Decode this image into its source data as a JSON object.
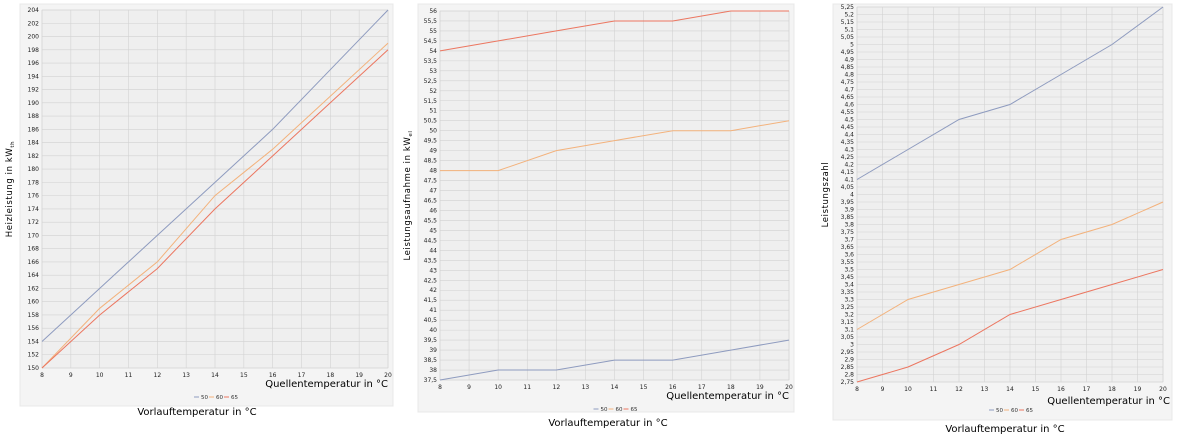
{
  "chart_data": [
    {
      "type": "line",
      "ylabel": "Heizleistung in kW",
      "ylabel_sub": "th",
      "xlabel": "Quellentemperatur in °C",
      "legend_title": "Vorlauftemperatur in °C",
      "legend_placement": "bottom",
      "grid": true,
      "xlim": [
        8,
        20
      ],
      "ylim": [
        150,
        204
      ],
      "x_ticks": [
        8,
        9,
        10,
        11,
        12,
        13,
        14,
        15,
        16,
        17,
        18,
        19,
        20
      ],
      "y_ticks": [
        150,
        152,
        154,
        156,
        158,
        160,
        162,
        164,
        166,
        168,
        170,
        172,
        174,
        176,
        178,
        180,
        182,
        184,
        186,
        188,
        190,
        192,
        194,
        196,
        198,
        200,
        202,
        204
      ],
      "y_tick_labels": [
        "150",
        "152",
        "154",
        "156",
        "158",
        "160",
        "162",
        "164",
        "166",
        "168",
        "170",
        "172",
        "174",
        "176",
        "178",
        "180",
        "182",
        "184",
        "186",
        "188",
        "190",
        "192",
        "194",
        "196",
        "198",
        "200",
        "202",
        "204"
      ],
      "series": [
        {
          "name": "50",
          "color": "#8e9bbf",
          "x": [
            8,
            10,
            12,
            14,
            16,
            18,
            20
          ],
          "y": [
            154,
            162,
            170,
            178,
            186,
            195,
            204
          ]
        },
        {
          "name": "60",
          "color": "#f3b27c",
          "x": [
            8,
            10,
            12,
            14,
            16,
            18,
            20
          ],
          "y": [
            150,
            159,
            166,
            176,
            183,
            191,
            199
          ]
        },
        {
          "name": "65",
          "color": "#ec7660",
          "x": [
            8,
            10,
            12,
            14,
            16,
            18,
            20
          ],
          "y": [
            150,
            158,
            165,
            174,
            182,
            190,
            198
          ]
        }
      ]
    },
    {
      "type": "line",
      "ylabel": "Leistungsaufnahme in kW",
      "ylabel_sub": "el",
      "xlabel": "Quellentemperatur in °C",
      "legend_title": "Vorlauftemperatur in °C",
      "legend_placement": "bottom",
      "grid": true,
      "xlim": [
        8,
        20
      ],
      "ylim": [
        37.5,
        56
      ],
      "x_ticks": [
        8,
        9,
        10,
        11,
        12,
        13,
        14,
        15,
        16,
        17,
        18,
        19,
        20
      ],
      "y_ticks": [
        37.5,
        38,
        38.5,
        39,
        39.5,
        40,
        40.5,
        41,
        41.5,
        42,
        42.5,
        43,
        43.5,
        44,
        44.5,
        45,
        45.5,
        46,
        46.5,
        47,
        47.5,
        48,
        48.5,
        49,
        49.5,
        50,
        50.5,
        51,
        51.5,
        52,
        52.5,
        53,
        53.5,
        54,
        54.5,
        55,
        55.5,
        56
      ],
      "y_tick_labels": [
        "37,5",
        "38",
        "38,5",
        "39",
        "39,5",
        "40",
        "40,5",
        "41",
        "41,5",
        "42",
        "42,5",
        "43",
        "43,5",
        "44",
        "44,5",
        "45",
        "45,5",
        "46",
        "46,5",
        "47",
        "47,5",
        "48",
        "48,5",
        "49",
        "49,5",
        "50",
        "50,5",
        "51",
        "51,5",
        "52",
        "52,5",
        "53",
        "53,5",
        "54",
        "54,5",
        "55",
        "55,5",
        "56"
      ],
      "series": [
        {
          "name": "50",
          "color": "#8e9bbf",
          "x": [
            8,
            10,
            12,
            14,
            16,
            18,
            20
          ],
          "y": [
            37.5,
            38,
            38,
            38.5,
            38.5,
            39,
            39.5
          ]
        },
        {
          "name": "60",
          "color": "#f3b27c",
          "x": [
            8,
            10,
            12,
            14,
            16,
            18,
            20
          ],
          "y": [
            48,
            48,
            49,
            49.5,
            50,
            50,
            50.5
          ]
        },
        {
          "name": "65",
          "color": "#ec7660",
          "x": [
            8,
            10,
            12,
            14,
            16,
            18,
            20
          ],
          "y": [
            54,
            54.5,
            55,
            55.5,
            55.5,
            56,
            56
          ]
        }
      ]
    },
    {
      "type": "line",
      "ylabel": "Leistungszahl",
      "ylabel_sub": "",
      "xlabel": "Quellentemperatur in °C",
      "legend_title": "Vorlauftemperatur in °C",
      "legend_placement": "bottom",
      "grid": true,
      "xlim": [
        8,
        20
      ],
      "ylim": [
        2.75,
        5.25
      ],
      "x_ticks": [
        8,
        9,
        10,
        11,
        12,
        13,
        14,
        15,
        16,
        17,
        18,
        19,
        20
      ],
      "y_ticks": [
        2.75,
        2.8,
        2.85,
        2.9,
        2.95,
        3,
        3.05,
        3.1,
        3.15,
        3.2,
        3.25,
        3.3,
        3.35,
        3.4,
        3.45,
        3.5,
        3.55,
        3.6,
        3.65,
        3.7,
        3.75,
        3.8,
        3.85,
        3.9,
        3.95,
        4,
        4.05,
        4.1,
        4.15,
        4.2,
        4.25,
        4.3,
        4.35,
        4.4,
        4.45,
        4.5,
        4.55,
        4.6,
        4.65,
        4.7,
        4.75,
        4.8,
        4.85,
        4.9,
        4.95,
        5,
        5.05,
        5.1,
        5.15,
        5.2,
        5.25
      ],
      "y_tick_labels": [
        "2,75",
        "2,8",
        "2,85",
        "2,9",
        "2,95",
        "3",
        "3,05",
        "3,1",
        "3,15",
        "3,2",
        "3,25",
        "3,3",
        "3,35",
        "3,4",
        "3,45",
        "3,5",
        "3,55",
        "3,6",
        "3,65",
        "3,7",
        "3,75",
        "3,8",
        "3,85",
        "3,9",
        "3,95",
        "4",
        "4,05",
        "4,1",
        "4,15",
        "4,2",
        "4,25",
        "4,3",
        "4,35",
        "4,4",
        "4,45",
        "4,5",
        "4,55",
        "4,6",
        "4,65",
        "4,7",
        "4,75",
        "4,8",
        "4,85",
        "4,9",
        "4,95",
        "5",
        "5,05",
        "5,1",
        "5,15",
        "5,2",
        "5,25"
      ],
      "series": [
        {
          "name": "50",
          "color": "#8e9bbf",
          "x": [
            8,
            10,
            12,
            14,
            16,
            18,
            20
          ],
          "y": [
            4.1,
            4.3,
            4.5,
            4.6,
            4.8,
            5.0,
            5.25
          ]
        },
        {
          "name": "60",
          "color": "#f3b27c",
          "x": [
            8,
            10,
            12,
            14,
            16,
            18,
            20
          ],
          "y": [
            3.1,
            3.3,
            3.4,
            3.5,
            3.7,
            3.8,
            3.95
          ]
        },
        {
          "name": "65",
          "color": "#ec7660",
          "x": [
            8,
            10,
            12,
            14,
            16,
            18,
            20
          ],
          "y": [
            2.75,
            2.85,
            3.0,
            3.2,
            3.3,
            3.4,
            3.5
          ]
        }
      ]
    }
  ]
}
